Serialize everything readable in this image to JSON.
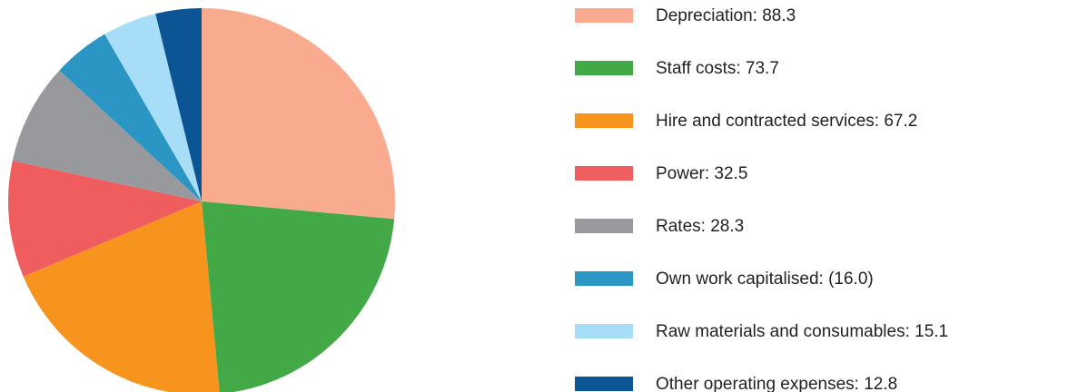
{
  "chart_data": {
    "type": "pie",
    "categories": [
      "Depreciation: 88.3",
      "Staff costs: 73.7",
      "Hire and contracted services: 67.2",
      "Power: 32.5",
      "Rates: 28.3",
      "Own work capitalised: (16.0)",
      "Raw materials and consumables: 15.1",
      "Other operating expenses: 12.8"
    ],
    "values": [
      88.3,
      73.7,
      67.2,
      32.5,
      28.3,
      16.0,
      15.1,
      12.8
    ],
    "colors": [
      "#f9ab8f",
      "#43a846",
      "#f7941d",
      "#f05d5e",
      "#98999c",
      "#2b95c3",
      "#a8ddf7",
      "#0b5595"
    ]
  }
}
